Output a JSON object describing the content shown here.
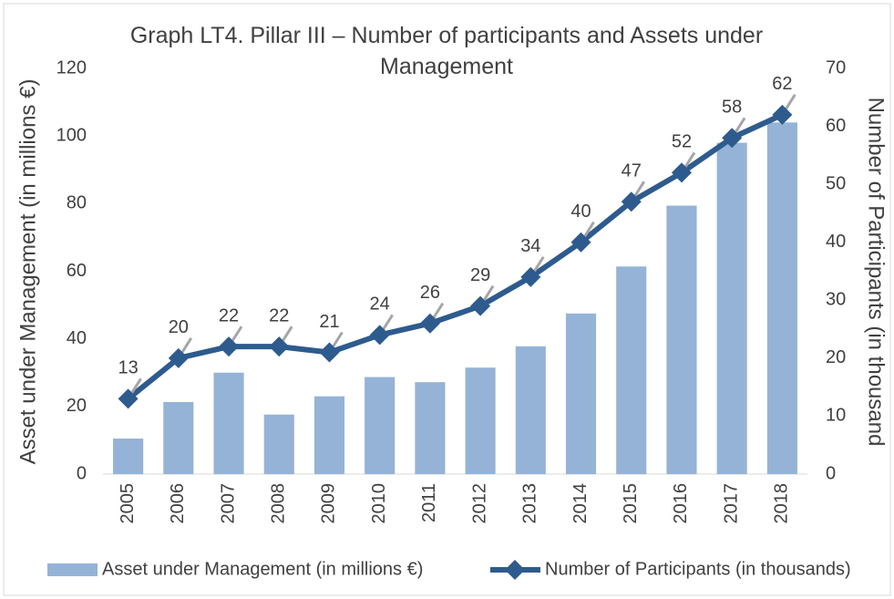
{
  "chart_data": {
    "type": "bar-line",
    "title": "Graph LT4. Pillar III – Number of participants and Assets under Management",
    "categories": [
      "2005",
      "2006",
      "2007",
      "2008",
      "2009",
      "2010",
      "2011",
      "2012",
      "2013",
      "2014",
      "2015",
      "2016",
      "2017",
      "2018"
    ],
    "series": [
      {
        "name": "Asset under Management (in millions €)",
        "type": "bar",
        "color": "#95b3d7",
        "axis": "y",
        "values": [
          10.5,
          21.3,
          30,
          17.6,
          23,
          28.7,
          27.2,
          31.5,
          37.8,
          47.5,
          61.4,
          79.4,
          98,
          104
        ]
      },
      {
        "name": "Number of Participants (in thousands)",
        "type": "line",
        "color": "#2e5b8e",
        "axis": "y2",
        "values": [
          13,
          20,
          22,
          22,
          21,
          24,
          26,
          29,
          34,
          40,
          47,
          52,
          58,
          62
        ]
      }
    ],
    "y_label": "Asset under Management (in millions €)",
    "y2_label": "Number of Participants (in thousand",
    "ylim": [
      0,
      120
    ],
    "yticks": [
      0,
      20,
      40,
      60,
      80,
      100,
      120
    ],
    "y2lim": [
      0,
      70
    ],
    "y2ticks": [
      0,
      10,
      20,
      30,
      40,
      50,
      60,
      70
    ],
    "grid": false
  }
}
